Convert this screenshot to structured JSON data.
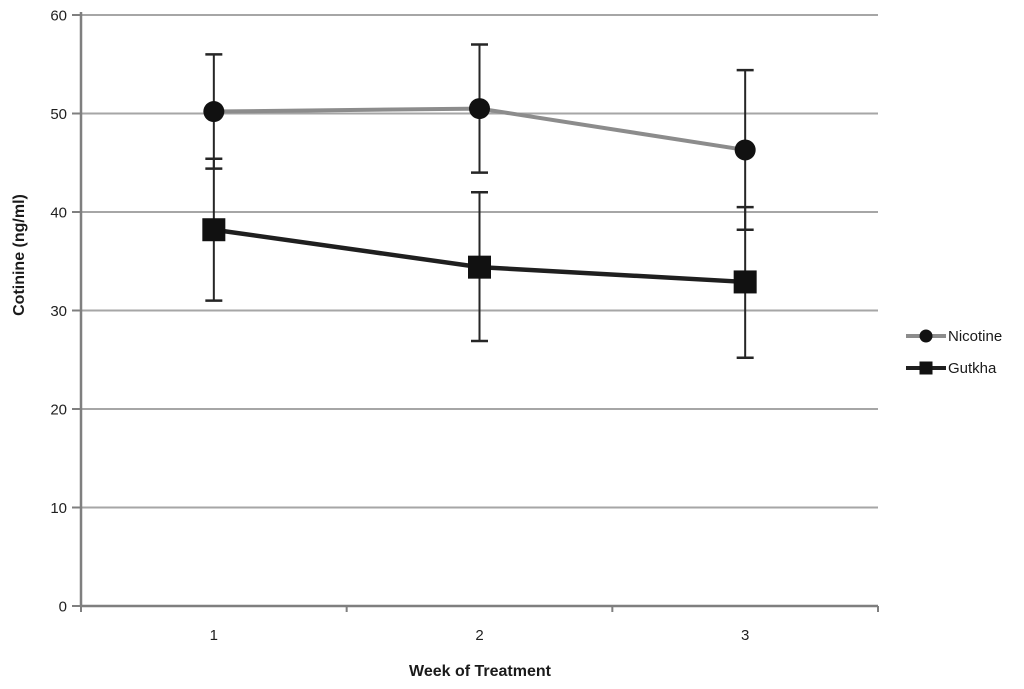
{
  "figure": {
    "background": "#ffffff"
  },
  "chart_data": {
    "type": "line",
    "title": "",
    "xlabel": "Week of Treatment",
    "ylabel": "Cotinine (ng/ml)",
    "x_tick_labels": [
      "1",
      "2",
      "3"
    ],
    "ylim": [
      0,
      60
    ],
    "yticks": [
      0,
      10,
      20,
      30,
      40,
      50,
      60
    ],
    "grid": "horizontal-only",
    "legend_position": "right-middle",
    "error_bars": "symmetric, cap width ~17px",
    "series": [
      {
        "name": "Nicotine",
        "marker": "circle",
        "line_color": "#8c8c8c",
        "line_width": 4,
        "marker_color": "#111111",
        "values": [
          50.2,
          50.5,
          46.3
        ],
        "error_low": [
          44.4,
          44.0,
          38.2
        ],
        "error_high": [
          56.0,
          57.0,
          54.4
        ]
      },
      {
        "name": "Gutkha",
        "marker": "square",
        "line_color": "#1f1f1f",
        "line_width": 4.5,
        "marker_color": "#111111",
        "values": [
          38.2,
          34.4,
          32.9
        ],
        "error_low": [
          31.0,
          26.9,
          25.2
        ],
        "error_high": [
          45.4,
          42.0,
          40.5
        ]
      }
    ],
    "colors": {
      "gridline": "#a6a6a6",
      "axis": "#7f7f7f",
      "error_bar": "#262626",
      "text": "#1f1f1f"
    }
  }
}
